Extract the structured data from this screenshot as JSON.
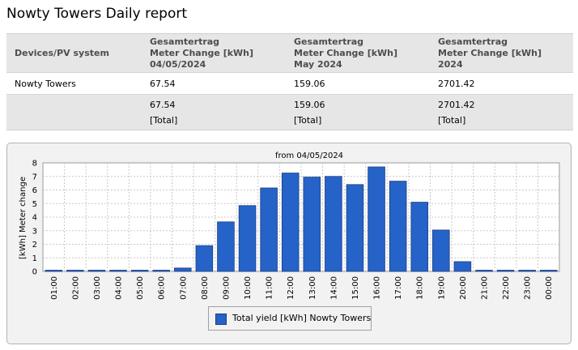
{
  "page": {
    "title": "Nowty Towers Daily report"
  },
  "table": {
    "columns": [
      "Devices/PV system",
      "Gesamtertrag Meter Change [kWh] 04/05/2024",
      "Gesamtertrag Meter Change [kWh] May 2024",
      "Gesamtertrag Meter Change [kWh] 2024"
    ],
    "column_lines": [
      [
        "Devices/PV system"
      ],
      [
        "Gesamtertrag",
        "Meter Change [kWh]",
        "04/05/2024"
      ],
      [
        "Gesamtertrag",
        "Meter Change [kWh]",
        "May 2024"
      ],
      [
        "Gesamtertrag",
        "Meter Change [kWh]",
        "2024"
      ]
    ],
    "rows": [
      {
        "device": "Nowty Towers",
        "day": "67.54",
        "month": "159.06",
        "year": "2701.42"
      }
    ],
    "total": {
      "label": "[Total]",
      "day": "67.54",
      "month": "159.06",
      "year": "2701.42"
    }
  },
  "chart_data": {
    "type": "bar",
    "title": "from 04/05/2024",
    "ylabel": "[kWh] Meter change",
    "xlabel": "",
    "ylim": [
      0,
      8
    ],
    "yticks": [
      "0",
      "1",
      "2",
      "3",
      "4",
      "5",
      "6",
      "7",
      "8"
    ],
    "grid": true,
    "legend_position": "bottom",
    "categories": [
      "01:00",
      "02:00",
      "03:00",
      "04:00",
      "05:00",
      "06:00",
      "07:00",
      "08:00",
      "09:00",
      "10:00",
      "11:00",
      "12:00",
      "13:00",
      "14:00",
      "15:00",
      "16:00",
      "17:00",
      "18:00",
      "19:00",
      "20:00",
      "21:00",
      "22:00",
      "23:00",
      "00:00"
    ],
    "series": [
      {
        "name": "Total yield [kWh] Nowty Towers",
        "color": "#2563c8",
        "values": [
          0,
          0,
          0,
          0,
          0,
          0,
          0.25,
          1.9,
          3.65,
          4.85,
          6.15,
          7.25,
          6.95,
          7.0,
          6.4,
          7.7,
          6.65,
          5.1,
          3.05,
          0.72,
          0,
          0,
          0,
          0
        ]
      }
    ]
  }
}
